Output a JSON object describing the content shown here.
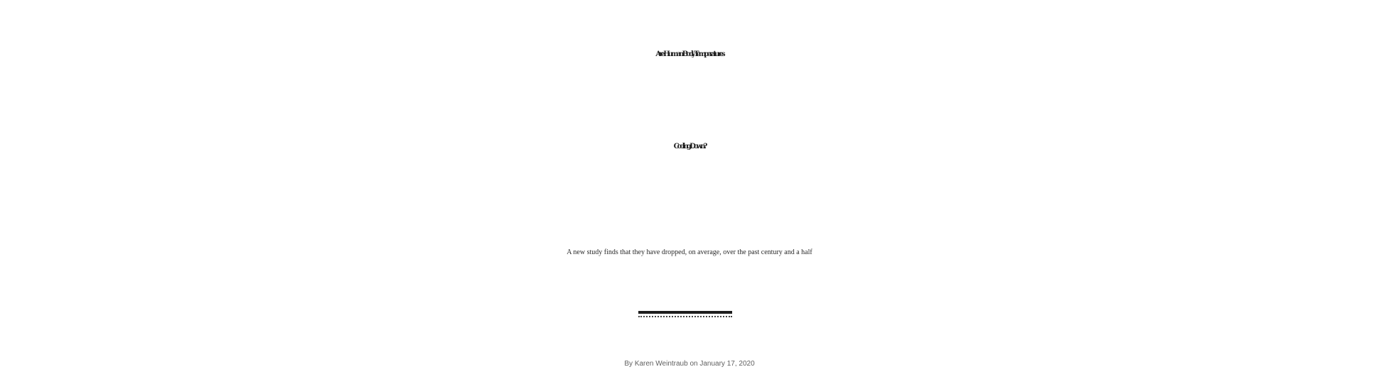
{
  "article": {
    "headline_line1": "Are Human Body Temperatures",
    "headline_line2": "Cooling Down?",
    "dek": "A new study finds that they have dropped, on average, over the past century and a half",
    "byline": {
      "prefix": "By",
      "author": "Karen Weintraub",
      "connector": "on",
      "date": "January 17, 2020"
    }
  }
}
